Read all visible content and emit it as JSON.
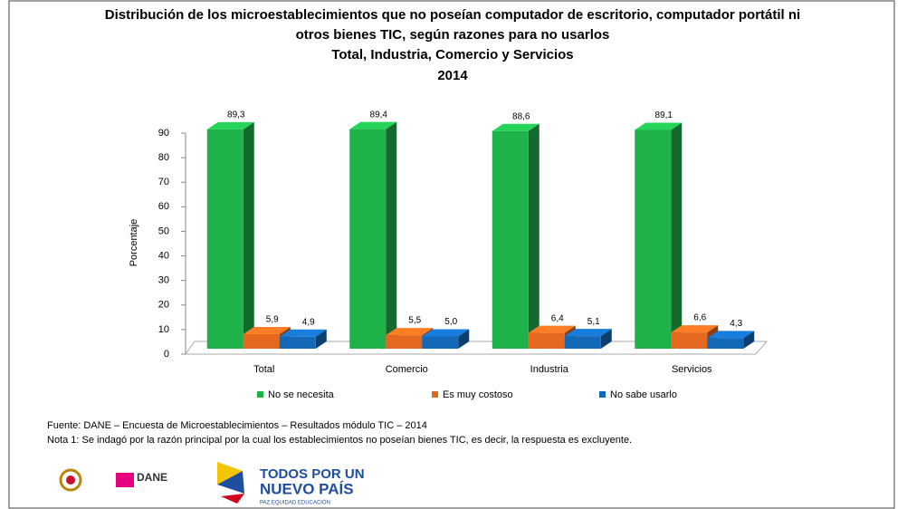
{
  "chart_data": {
    "type": "bar3d",
    "title": [
      "Distribución de los microestablecimientos que no poseían computador de escritorio, computador portátil ni",
      "otros bienes TIC, según razones para no usarlos"
    ],
    "subtitle": [
      "Total, Industria, Comercio y Servicios",
      "2014"
    ],
    "y_label": "Porcentaje",
    "categories": [
      "Total",
      "Comercio",
      "Industria",
      "Servicios"
    ],
    "series": [
      {
        "name": "No se necesita",
        "color": "#1fb14a",
        "values": [
          89.3,
          89.4,
          88.6,
          89.1
        ],
        "value_labels": [
          "89,3",
          "89,4",
          "88,6",
          "89,1"
        ]
      },
      {
        "name": "Es muy costoso",
        "color": "#e5681f",
        "values": [
          5.9,
          5.5,
          6.4,
          6.6
        ],
        "value_labels": [
          "5,9",
          "5,5",
          "6,4",
          "6,6"
        ]
      },
      {
        "name": "No sabe usarlo",
        "color": "#1468b8",
        "values": [
          4.9,
          5.0,
          5.1,
          4.3
        ],
        "value_labels": [
          "4,9",
          "5,0",
          "5,1",
          "4,3"
        ]
      }
    ],
    "ylim": [
      0,
      90
    ],
    "yticks": [
      0,
      10,
      20,
      30,
      40,
      50,
      60,
      70,
      80,
      90
    ],
    "grid": false,
    "legend": "bottom",
    "source": "Fuente: DANE – Encuesta de Microestablecimientos – Resultados módulo TIC – 2014",
    "note": "Nota 1: Se indagó por la razón principal por la cual los establecimientos no poseían bienes TIC, es decir, la respuesta es excluyente.",
    "logos": [
      "DANE",
      "TODOS POR UN",
      "NUEVO PAÍS",
      "PAZ  EQUIDAD  EDUCACIÓN"
    ]
  }
}
